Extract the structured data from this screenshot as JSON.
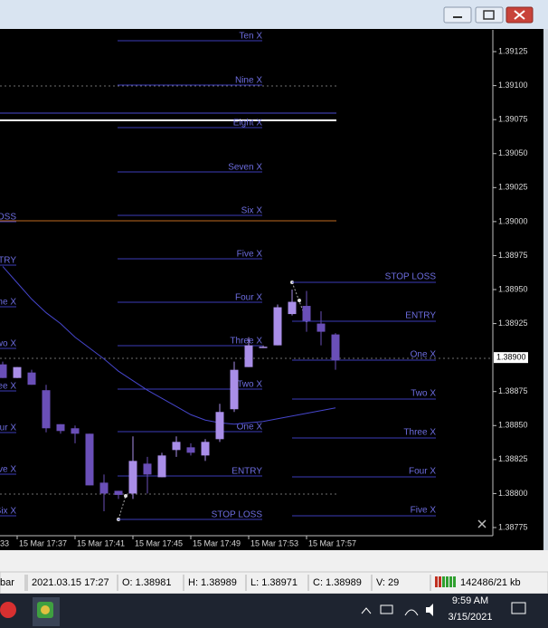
{
  "chart_data": {
    "type": "candlestick",
    "categories": [
      null,
      "15 Mar 17:37",
      null,
      null,
      null,
      "15 Mar 17:41",
      null,
      null,
      null,
      "15 Mar 17:45",
      null,
      null,
      null,
      "15 Mar 17:49",
      null,
      null,
      null,
      "15 Mar 17:53",
      null,
      null,
      null,
      "15 Mar 17:57",
      null,
      null
    ],
    "clipped_time_label": "33",
    "open": [
      1.38895,
      1.38885,
      1.38889,
      1.38876,
      1.38851,
      1.38848,
      1.38844,
      1.38808,
      1.38802,
      1.388,
      1.38822,
      1.38812,
      1.38832,
      1.38834,
      1.38828,
      1.3884,
      1.38862,
      1.38893,
      1.38907,
      1.38909,
      1.38932,
      1.38938,
      1.38925,
      1.38917
    ],
    "high": [
      1.38897,
      1.38893,
      1.38891,
      1.3888,
      1.38851,
      1.3885,
      1.38844,
      1.38814,
      1.38802,
      1.38842,
      1.38827,
      1.3883,
      1.38842,
      1.38837,
      1.3884,
      1.38866,
      1.38897,
      1.38915,
      1.38909,
      1.38939,
      1.3895,
      1.38949,
      1.38934,
      1.38918
    ],
    "low": [
      1.38885,
      1.38885,
      1.3888,
      1.38845,
      1.38844,
      1.38837,
      1.38806,
      1.38787,
      1.38796,
      1.38796,
      1.388,
      1.38812,
      1.38827,
      1.38828,
      1.38824,
      1.38838,
      1.3886,
      1.38893,
      1.38907,
      1.38909,
      1.38931,
      1.38919,
      1.38909,
      1.38891
    ],
    "close": [
      1.38885,
      1.38893,
      1.3888,
      1.38848,
      1.38846,
      1.38844,
      1.38806,
      1.388,
      1.38799,
      1.38824,
      1.38814,
      1.38828,
      1.38838,
      1.3883,
      1.38838,
      1.3886,
      1.38891,
      1.38909,
      1.38908,
      1.38937,
      1.38941,
      1.38927,
      1.38919,
      1.38898
    ],
    "up_color": "#a98ee8",
    "down_color": "#6a4fb8",
    "moving_average": {
      "color": "#4646cc",
      "values": [
        1.38967,
        1.38955,
        1.38943,
        1.38933,
        1.38925,
        1.38915,
        1.38907,
        1.38899,
        1.3889,
        1.38883,
        1.38876,
        1.3887,
        1.38864,
        1.38858,
        1.38854,
        1.38852,
        1.38851,
        1.38852,
        1.38853,
        1.38855,
        1.38857,
        1.38859,
        1.38861,
        1.38863
      ]
    },
    "ylim": [
      1.38769,
      1.39141
    ],
    "yticks": [
      1.39125,
      {
        "value": 1.391,
        "label": "1.39100"
      },
      1.39075,
      {
        "value": 1.3905,
        "label": "1.39050"
      },
      1.39025,
      {
        "value": 1.39,
        "label": "1.39000"
      },
      1.38975,
      {
        "value": 1.3895,
        "label": "1.38950"
      },
      1.38925,
      1.38875,
      {
        "value": 1.3885,
        "label": "1.38850"
      },
      1.38825,
      {
        "value": 1.388,
        "label": "1.38800"
      },
      1.38775
    ],
    "bid": {
      "value": 1.389,
      "label": "1.38900"
    },
    "levels_left": [
      "Ten X",
      "Nine X",
      "Eight X",
      "Seven X",
      "Six X",
      "Five X",
      "Four X",
      "Three X",
      "Two X",
      "One X",
      "ENTRY",
      "STOP LOSS"
    ],
    "levels_right": [
      "STOP LOSS",
      "ENTRY",
      "One X",
      "Two X",
      "Three X",
      "Four X",
      "Five X"
    ],
    "levels_clipped": [
      "OSS",
      "NTRY",
      "ne X",
      "wo X",
      "ee X",
      "our X",
      "ive X",
      "Six X"
    ]
  },
  "status_bar": {
    "items": [
      "bar",
      "2021.03.15 17:27",
      "O: 1.38981",
      "H: 1.38989",
      "L: 1.38971",
      "C: 1.38989",
      "V: 29"
    ],
    "traffic": "142486/21 kb"
  },
  "taskbar": {
    "time": "9:59 AM",
    "date": "3/15/2021"
  }
}
